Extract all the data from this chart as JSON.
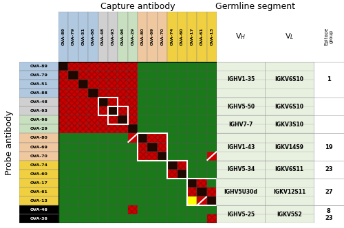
{
  "capture_abs": [
    "OVA-89",
    "OVA-79",
    "OVA-51",
    "OVA-88",
    "OVA-48",
    "OVA-93",
    "OVA-96",
    "OVA-29",
    "OVA-80",
    "OVA-69",
    "OVA-70",
    "OVA-74",
    "OVA-60",
    "OVA-17",
    "OVA-61",
    "OVA-13"
  ],
  "probe_abs": [
    "OVA-89",
    "OVA-79",
    "OVA-51",
    "OVA-88",
    "OVA-48",
    "OVA-93",
    "OVA-96",
    "OVA-29",
    "OVA-80",
    "OVA-69",
    "OVA-70",
    "OVA-74",
    "OVA-60",
    "OVA-17",
    "OVA-61",
    "OVA-13",
    "OVA-46",
    "OVA-36"
  ],
  "probe_bg_colors": [
    "#b0c8e0",
    "#b0c8e0",
    "#b0c8e0",
    "#b0c8e0",
    "#d0d0d0",
    "#d0d0d0",
    "#c8e0c0",
    "#c8e0c0",
    "#f0c8a0",
    "#f0c8a0",
    "#f0c8a0",
    "#f0d040",
    "#f0d040",
    "#f0d040",
    "#f0d040",
    "#f0d040",
    "#000000",
    "#000000"
  ],
  "capture_bg_colors": [
    "#b0c8e0",
    "#b0c8e0",
    "#b0c8e0",
    "#b0c8e0",
    "#d0d0d0",
    "#d0d0d0",
    "#c8e0c0",
    "#c8e0c0",
    "#f0c8a0",
    "#f0c8a0",
    "#f0c8a0",
    "#f0d040",
    "#f0d040",
    "#f0d040",
    "#f0d040",
    "#f0d040"
  ],
  "germline_VH": [
    "IGHV1-35",
    "IGHV5-50",
    "IGHV7-7",
    "IGHV1-43",
    "IGHV5-34",
    "IGHV5U30d",
    "IGHV5-25"
  ],
  "germline_VL": [
    "IGKV6S10",
    "IGKV6S10",
    "IGKV3S10",
    "IGKV14S9",
    "IGKV6S11",
    "IGKV12S11",
    "IGKV5S2"
  ],
  "epitope_groups": [
    "1",
    "",
    "",
    "19",
    "23",
    "27",
    "8\n23"
  ],
  "germline_row_spans": [
    4,
    2,
    2,
    3,
    2,
    3,
    2
  ],
  "matrix": [
    [
      0,
      1,
      1,
      1,
      1,
      1,
      1,
      1,
      2,
      2,
      2,
      2,
      2,
      2,
      2,
      2
    ],
    [
      1,
      0,
      1,
      1,
      1,
      1,
      1,
      1,
      2,
      2,
      2,
      2,
      2,
      2,
      2,
      2
    ],
    [
      1,
      1,
      0,
      1,
      1,
      1,
      1,
      1,
      2,
      2,
      2,
      2,
      2,
      2,
      2,
      2
    ],
    [
      1,
      1,
      1,
      0,
      1,
      1,
      1,
      1,
      2,
      2,
      2,
      2,
      2,
      2,
      2,
      2
    ],
    [
      1,
      1,
      1,
      1,
      0,
      1,
      1,
      1,
      2,
      2,
      2,
      2,
      2,
      2,
      2,
      2
    ],
    [
      1,
      1,
      1,
      1,
      1,
      0,
      1,
      1,
      2,
      2,
      2,
      2,
      2,
      2,
      2,
      2
    ],
    [
      1,
      1,
      1,
      1,
      1,
      1,
      0,
      1,
      2,
      2,
      2,
      2,
      2,
      2,
      2,
      2
    ],
    [
      1,
      1,
      1,
      1,
      1,
      1,
      1,
      0,
      2,
      2,
      2,
      2,
      2,
      2,
      2,
      2
    ],
    [
      2,
      2,
      2,
      2,
      2,
      2,
      2,
      3,
      0,
      1,
      1,
      2,
      2,
      2,
      2,
      2
    ],
    [
      2,
      2,
      2,
      2,
      2,
      2,
      2,
      2,
      1,
      0,
      1,
      2,
      2,
      2,
      2,
      2
    ],
    [
      2,
      2,
      2,
      2,
      2,
      2,
      2,
      2,
      1,
      1,
      0,
      2,
      2,
      2,
      2,
      3
    ],
    [
      2,
      2,
      2,
      2,
      2,
      2,
      2,
      2,
      2,
      2,
      2,
      0,
      1,
      2,
      2,
      2
    ],
    [
      2,
      2,
      2,
      2,
      2,
      2,
      2,
      2,
      2,
      2,
      2,
      1,
      0,
      2,
      2,
      2
    ],
    [
      2,
      2,
      2,
      2,
      2,
      2,
      2,
      2,
      2,
      2,
      2,
      2,
      2,
      0,
      1,
      2
    ],
    [
      2,
      2,
      2,
      2,
      2,
      2,
      2,
      2,
      2,
      2,
      2,
      2,
      2,
      1,
      0,
      1
    ],
    [
      2,
      2,
      2,
      2,
      2,
      2,
      2,
      2,
      2,
      2,
      2,
      2,
      2,
      4,
      3,
      0
    ],
    [
      2,
      2,
      2,
      2,
      2,
      2,
      2,
      1,
      2,
      2,
      2,
      2,
      2,
      2,
      2,
      2
    ],
    [
      2,
      2,
      2,
      2,
      2,
      2,
      2,
      2,
      2,
      2,
      2,
      2,
      2,
      2,
      2,
      1
    ]
  ],
  "white_boxes": [
    {
      "rows": [
        4,
        5
      ],
      "cols": [
        4,
        5
      ]
    },
    {
      "rows": [
        5,
        6
      ],
      "cols": [
        5,
        6
      ]
    },
    {
      "rows": [
        8,
        9,
        10
      ],
      "cols": [
        8,
        9,
        10
      ]
    },
    {
      "rows": [
        11,
        12
      ],
      "cols": [
        11,
        12
      ]
    },
    {
      "rows": [
        13,
        14,
        15
      ],
      "cols": [
        13,
        14,
        15
      ]
    }
  ],
  "diagonal_lines": [
    {
      "row": 8,
      "col": 7
    },
    {
      "row": 10,
      "col": 15
    },
    {
      "row": 15,
      "col": 14
    }
  ],
  "color_green": "#1a7a1a",
  "color_red": "#cc0000",
  "color_black": "#1a0a00",
  "color_yellow": "#ffff00",
  "grid_color": "#555555"
}
